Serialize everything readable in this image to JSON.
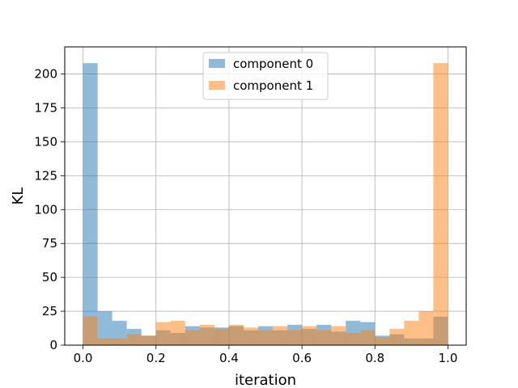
{
  "chart_data": {
    "type": "bar",
    "subtype": "histogram-overlay",
    "title": "",
    "xlabel": "iteration",
    "ylabel": "KL",
    "xlim": [
      -0.05,
      1.05
    ],
    "ylim": [
      0,
      220
    ],
    "xticks": [
      0.0,
      0.2,
      0.4,
      0.6,
      0.8,
      1.0
    ],
    "xtick_labels": [
      "0.0",
      "0.2",
      "0.4",
      "0.6",
      "0.8",
      "1.0"
    ],
    "yticks": [
      0,
      25,
      50,
      75,
      100,
      125,
      150,
      175,
      200
    ],
    "ytick_labels": [
      "0",
      "25",
      "50",
      "75",
      "100",
      "125",
      "150",
      "175",
      "200"
    ],
    "grid": true,
    "legend_position": "upper center",
    "bin_edges": [
      0.0,
      0.04,
      0.08,
      0.12,
      0.16,
      0.2,
      0.24,
      0.28,
      0.32,
      0.36,
      0.4,
      0.44,
      0.48,
      0.52,
      0.56,
      0.6,
      0.64,
      0.68,
      0.72,
      0.76,
      0.8,
      0.84,
      0.88,
      0.92,
      0.96,
      1.0
    ],
    "series": [
      {
        "name": "component 0",
        "color": "#1f77b4",
        "alpha": 0.5,
        "values": [
          208,
          25,
          18,
          12,
          7,
          11,
          9,
          14,
          13,
          13,
          14,
          11,
          14,
          11,
          15,
          12,
          15,
          10,
          18,
          17,
          7,
          8,
          5,
          5,
          21
        ]
      },
      {
        "name": "component 1",
        "color": "#ff7f0e",
        "alpha": 0.5,
        "values": [
          21,
          5,
          5,
          8,
          7,
          17,
          18,
          11,
          15,
          12,
          15,
          13,
          11,
          14,
          11,
          14,
          11,
          14,
          9,
          11,
          6,
          12,
          18,
          25,
          208
        ]
      }
    ]
  }
}
